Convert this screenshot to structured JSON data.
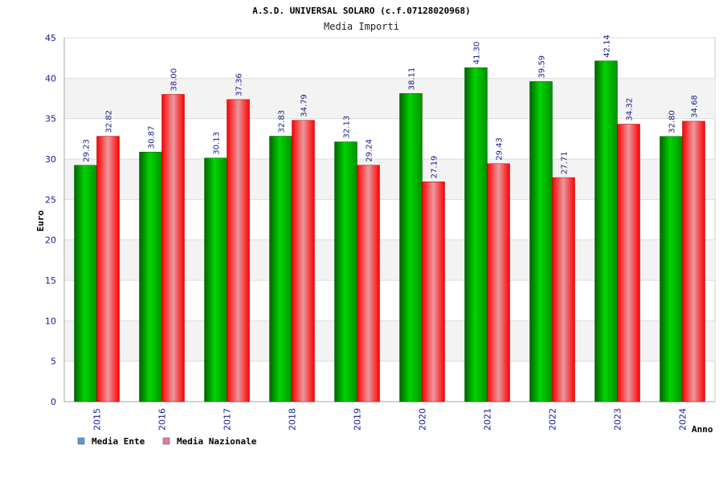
{
  "chart_data": {
    "type": "bar",
    "title": "A.S.D. UNIVERSAL SOLARO (c.f.07128020968)",
    "subtitle": "Media Importi",
    "xlabel": "Anno",
    "ylabel": "Euro",
    "ylim": [
      0,
      45
    ],
    "yticks": [
      "0",
      "5",
      "10",
      "15",
      "20",
      "25",
      "30",
      "35",
      "40",
      "45"
    ],
    "grid": true,
    "legend_position": "bottom-left",
    "categories": [
      "2015",
      "2016",
      "2017",
      "2018",
      "2019",
      "2020",
      "2021",
      "2022",
      "2023",
      "2024"
    ],
    "series": [
      {
        "name": "Media Ente",
        "color": "#00b000",
        "legend_color": "#5b9bd5",
        "values": [
          29.23,
          30.87,
          30.13,
          32.83,
          32.13,
          38.11,
          41.3,
          39.59,
          42.14,
          32.8
        ],
        "labels": [
          "29.23",
          "30.87",
          "30.13",
          "32.83",
          "32.13",
          "38.11",
          "41.30",
          "39.59",
          "42.14",
          "32.80"
        ]
      },
      {
        "name": "Media Nazionale",
        "color": "#ee1111",
        "legend_color": "#e07aa8",
        "values": [
          32.82,
          38.0,
          37.36,
          34.79,
          29.24,
          27.19,
          29.43,
          27.71,
          34.32,
          34.68
        ],
        "labels": [
          "32.82",
          "38.00",
          "37.36",
          "34.79",
          "29.24",
          "27.19",
          "29.43",
          "27.71",
          "34.32",
          "34.68"
        ]
      }
    ]
  }
}
